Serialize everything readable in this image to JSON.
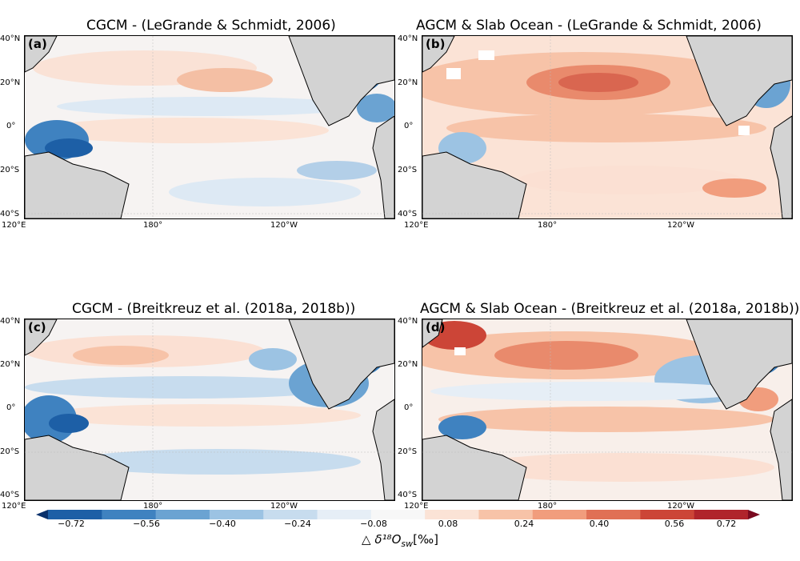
{
  "panels": [
    {
      "letter": "(a)",
      "title": "CGCM - (LeGrande & Schmidt, 2006)"
    },
    {
      "letter": "(b)",
      "title": "AGCM & Slab Ocean - (LeGrande & Schmidt, 2006)"
    },
    {
      "letter": "(c)",
      "title": "CGCM - (Breitkreuz et al. (2018a, 2018b))"
    },
    {
      "letter": "(d)",
      "title": "AGCM & Slab Ocean - (Breitkreuz et al. (2018a, 2018b))"
    }
  ],
  "lat_labels": [
    "40°N",
    "20°N",
    "0°",
    "20°S",
    "40°S"
  ],
  "lon_labels": [
    "120°E",
    "180°",
    "120°W"
  ],
  "colorbar": {
    "ticks": [
      "−0.72",
      "−0.56",
      "−0.40",
      "−0.24",
      "−0.08",
      "0.08",
      "0.24",
      "0.40",
      "0.56",
      "0.72"
    ],
    "label_text": "△ ",
    "label_symbol": "δ¹⁸O",
    "label_sub": "sw",
    "label_unit": "[‰]",
    "colors": [
      "#08306b",
      "#1d5fa6",
      "#3f82c0",
      "#6ba3d2",
      "#9cc3e3",
      "#c7dcee",
      "#e6eef6",
      "#f7f7f7",
      "#fbe3d6",
      "#f7c3a8",
      "#f19d7d",
      "#e07055",
      "#cc4537",
      "#b0242b",
      "#7a0a1f"
    ]
  },
  "colors": {
    "land": "#d3d3d3",
    "neg_strong": "#2166ac",
    "neg_light": "#d1e5f0",
    "pos_light": "#fddbc7",
    "pos_strong": "#d6604d"
  }
}
